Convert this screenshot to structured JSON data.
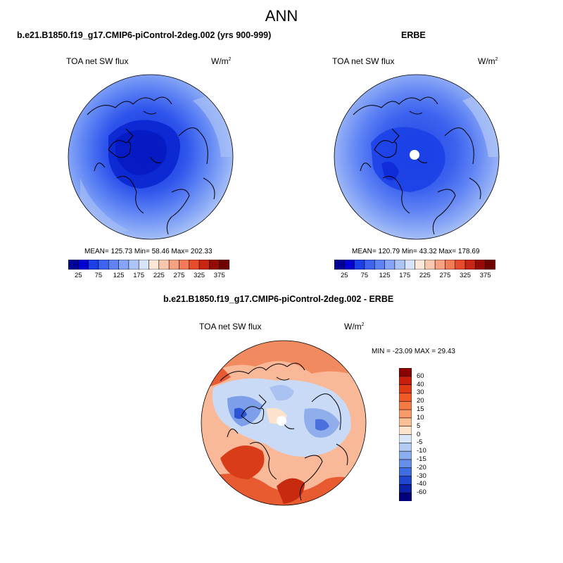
{
  "figure": {
    "title": "ANN"
  },
  "panels": [
    {
      "title": "b.e21.B1850.f19_g17.CMIP6-piControl-2deg.002 (yrs 900-999)",
      "variable": "TOA net SW flux",
      "units_base": "W/m",
      "units_exp": "2",
      "stats": "MEAN= 125.73  Min=  58.46  Max= 202.33"
    },
    {
      "title": "ERBE",
      "variable": "TOA net SW flux",
      "units_base": "W/m",
      "units_exp": "2",
      "stats": "MEAN= 120.79  Min=  43.32  Max= 178.69"
    },
    {
      "title": "b.e21.B1850.f19_g17.CMIP6-piControl-2deg.002 - ERBE",
      "variable": "TOA net SW flux",
      "units_base": "W/m",
      "units_exp": "2",
      "stats": "MIN = -23.09 MAX =  29.43"
    }
  ],
  "chart_data": [
    {
      "type": "heatmap",
      "projection": "north-polar-stereographic",
      "title": "b.e21.B1850.f19_g17.CMIP6-piControl-2deg.002 (yrs 900-999)",
      "variable": "TOA net SW flux",
      "units": "W/m^2",
      "stats": {
        "mean": 125.73,
        "min": 58.46,
        "max": 202.33
      },
      "colorbar": {
        "orientation": "horizontal",
        "levels": [
          25,
          50,
          75,
          100,
          125,
          150,
          175,
          200,
          225,
          250,
          275,
          300,
          325,
          350,
          375
        ],
        "tick_labels": [
          "25",
          "75",
          "125",
          "175",
          "225",
          "275",
          "325",
          "375"
        ],
        "colors": [
          "#000096",
          "#0000d2",
          "#1a3fe6",
          "#3d63f0",
          "#5f83f5",
          "#85a3f7",
          "#adc4f7",
          "#d7e4f9",
          "#fbe6d8",
          "#f9c7ad",
          "#f6a17f",
          "#f27a57",
          "#e84a2c",
          "#c82514",
          "#960a05",
          "#6e0000"
        ]
      }
    },
    {
      "type": "heatmap",
      "projection": "north-polar-stereographic",
      "title": "ERBE",
      "variable": "TOA net SW flux",
      "units": "W/m^2",
      "stats": {
        "mean": 120.79,
        "min": 43.32,
        "max": 178.69
      },
      "colorbar": {
        "orientation": "horizontal",
        "levels": [
          25,
          50,
          75,
          100,
          125,
          150,
          175,
          200,
          225,
          250,
          275,
          300,
          325,
          350,
          375
        ],
        "tick_labels": [
          "25",
          "75",
          "125",
          "175",
          "225",
          "275",
          "325",
          "375"
        ],
        "colors": [
          "#000096",
          "#0000d2",
          "#1a3fe6",
          "#3d63f0",
          "#5f83f5",
          "#85a3f7",
          "#adc4f7",
          "#d7e4f9",
          "#fbe6d8",
          "#f9c7ad",
          "#f6a17f",
          "#f27a57",
          "#e84a2c",
          "#c82514",
          "#960a05",
          "#6e0000"
        ]
      }
    },
    {
      "type": "heatmap",
      "projection": "north-polar-stereographic",
      "title": "b.e21.B1850.f19_g17.CMIP6-piControl-2deg.002 - ERBE",
      "variable": "TOA net SW flux",
      "units": "W/m^2",
      "stats": {
        "min": -23.09,
        "max": 29.43
      },
      "colorbar": {
        "orientation": "vertical",
        "levels": [
          -60,
          -40,
          -30,
          -20,
          -15,
          -10,
          -5,
          0,
          5,
          10,
          15,
          20,
          30,
          40,
          60
        ],
        "tick_labels": [
          "60",
          "40",
          "30",
          "20",
          "15",
          "10",
          "5",
          "0",
          "-5",
          "-10",
          "-15",
          "-20",
          "-30",
          "-40",
          "-60"
        ],
        "colors_top_to_bottom": [
          "#8b0000",
          "#c81e0a",
          "#e03c14",
          "#ee5a28",
          "#f47a46",
          "#f89a6a",
          "#fbbf98",
          "#fde3cc",
          "#d9e6f7",
          "#b3cbf3",
          "#8cadee",
          "#668ee8",
          "#3f6ce0",
          "#1f46cc",
          "#0c22a8",
          "#000078"
        ]
      }
    }
  ]
}
